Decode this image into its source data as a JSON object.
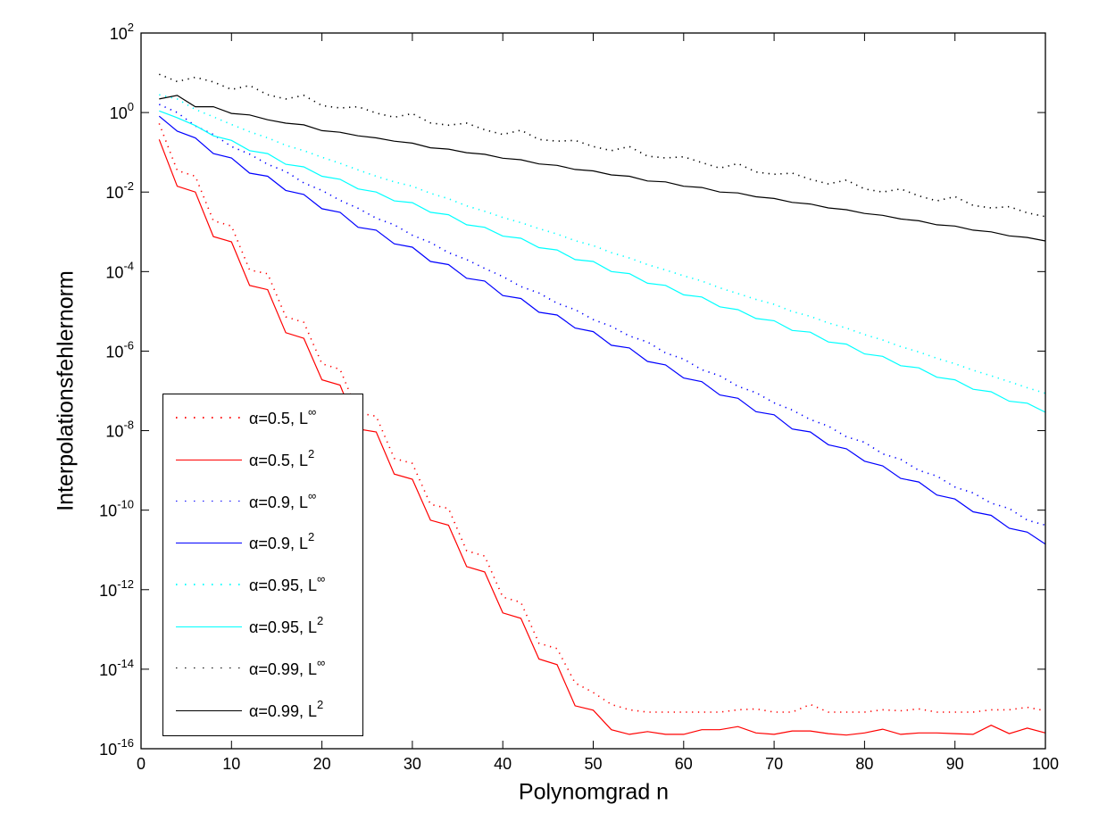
{
  "chart_data": {
    "type": "line",
    "title": "",
    "xlabel": "Polynomgrad n",
    "ylabel": "Interpolationsfehlernorm",
    "xlim": [
      0,
      100
    ],
    "ylim": [
      1e-16,
      100.0
    ],
    "yscale": "log",
    "grid": false,
    "legend_position": "bottom-left",
    "x_ticks": [
      "0",
      "10",
      "20",
      "30",
      "40",
      "50",
      "60",
      "70",
      "80",
      "90",
      "100"
    ],
    "y_ticks": [
      {
        "base": "10",
        "exp": "2"
      },
      {
        "base": "10",
        "exp": "0"
      },
      {
        "base": "10",
        "exp": "-2"
      },
      {
        "base": "10",
        "exp": "-4"
      },
      {
        "base": "10",
        "exp": "-6"
      },
      {
        "base": "10",
        "exp": "-8"
      },
      {
        "base": "10",
        "exp": "-10"
      },
      {
        "base": "10",
        "exp": "-12"
      },
      {
        "base": "10",
        "exp": "-14"
      },
      {
        "base": "10",
        "exp": "-16"
      }
    ],
    "x": [
      2,
      4,
      6,
      8,
      10,
      12,
      14,
      16,
      18,
      20,
      22,
      24,
      26,
      28,
      30,
      32,
      34,
      36,
      38,
      40,
      42,
      44,
      46,
      48,
      50,
      52,
      54,
      56,
      58,
      60,
      62,
      64,
      66,
      68,
      70,
      72,
      74,
      76,
      78,
      80,
      82,
      84,
      86,
      88,
      90,
      92,
      94,
      96,
      98,
      100
    ],
    "series": [
      {
        "name": "α=0.5, L",
        "sup": "∞",
        "color": "#ff0000",
        "style": "dotted",
        "values": [
          0.53,
          0.035,
          0.025,
          0.0019,
          0.0014,
          0.00011,
          8.8e-05,
          7.3e-06,
          5.3e-06,
          4.8e-07,
          3.5e-07,
          2.8e-08,
          2.3e-08,
          2e-09,
          1.5e-09,
          1.4e-10,
          1.1e-10,
          9.5e-12,
          7e-12,
          6.5e-13,
          4.8e-13,
          4.5e-14,
          3.3e-14,
          4.5e-15,
          2.6e-15,
          1.3e-15,
          9.5e-16,
          8.3e-16,
          8.3e-16,
          8.3e-16,
          8.3e-16,
          8.3e-16,
          9.5e-16,
          1e-15,
          8.3e-16,
          8.3e-16,
          1.3e-15,
          8.3e-16,
          8.3e-16,
          8.3e-16,
          9.5e-16,
          9e-16,
          1e-15,
          8.3e-16,
          8.3e-16,
          8.3e-16,
          9.5e-16,
          9.5e-16,
          1.1e-15,
          9e-16
        ]
      },
      {
        "name": "α=0.5, L",
        "sup": "2",
        "color": "#ff0000",
        "style": "solid",
        "values": [
          0.21,
          0.014,
          0.01,
          0.00076,
          0.00056,
          4.5e-05,
          3.5e-05,
          2.9e-06,
          2.1e-06,
          1.9e-07,
          1.4e-07,
          1.1e-08,
          9.3e-09,
          8.1e-10,
          6e-10,
          5.6e-11,
          4.2e-11,
          3.8e-12,
          2.8e-12,
          2.6e-13,
          1.9e-13,
          1.8e-14,
          1.3e-14,
          1.2e-15,
          9.3e-16,
          3e-16,
          2.3e-16,
          2.7e-16,
          2.3e-16,
          2.3e-16,
          3e-16,
          3e-16,
          3.6e-16,
          2.5e-16,
          2.3e-16,
          2.8e-16,
          2.8e-16,
          2.4e-16,
          2.2e-16,
          2.5e-16,
          3.1e-16,
          2.3e-16,
          2.5e-16,
          2.5e-16,
          2.4e-16,
          2.3e-16,
          3.9e-16,
          2.4e-16,
          3.3e-16,
          2.5e-16
        ]
      },
      {
        "name": "α=0.9, L",
        "sup": "∞",
        "color": "#0000ff",
        "style": "dotted",
        "values": [
          1.6,
          1.0,
          0.46,
          0.28,
          0.14,
          0.09,
          0.05,
          0.033,
          0.017,
          0.011,
          0.0062,
          0.0039,
          0.0022,
          0.0015,
          0.00082,
          0.00054,
          0.0003,
          0.0002,
          0.00012,
          7.5e-05,
          4.2e-05,
          2.9e-05,
          1.6e-05,
          1.1e-05,
          6.2e-06,
          4.2e-06,
          2.4e-06,
          1.7e-06,
          9e-07,
          6.3e-07,
          3.4e-07,
          2.4e-07,
          1.3e-07,
          9e-08,
          5e-08,
          3.3e-08,
          1.9e-08,
          1.3e-08,
          7e-09,
          5.1e-09,
          2.6e-09,
          1.9e-09,
          1e-09,
          7.2e-10,
          3.8e-10,
          2.7e-10,
          1.5e-10,
          1.1e-10,
          5.6e-11,
          4.2e-11
        ]
      },
      {
        "name": "α=0.9, L",
        "sup": "2",
        "color": "#0000ff",
        "style": "solid",
        "values": [
          0.81,
          0.34,
          0.23,
          0.093,
          0.072,
          0.03,
          0.025,
          0.011,
          0.0087,
          0.0038,
          0.0031,
          0.0013,
          0.0011,
          0.0005,
          0.00041,
          0.00018,
          0.00015,
          6.8e-05,
          5.8e-05,
          2.5e-05,
          2.1e-05,
          9.5e-06,
          8.1e-06,
          3.8e-06,
          3.1e-06,
          1.4e-06,
          1.2e-06,
          5.5e-07,
          4.5e-07,
          2.1e-07,
          1.7e-07,
          7.9e-08,
          6.5e-08,
          3e-08,
          2.5e-08,
          1.1e-08,
          9.3e-09,
          4.4e-09,
          3.5e-09,
          1.7e-09,
          1.3e-09,
          6.3e-10,
          5.1e-10,
          2.4e-10,
          1.9e-10,
          9.1e-11,
          7.4e-11,
          3.5e-11,
          2.8e-11,
          1.4e-11
        ]
      },
      {
        "name": "α=0.95, L",
        "sup": "∞",
        "color": "#00ffff",
        "style": "dotted",
        "values": [
          2.8,
          2.2,
          1.2,
          0.78,
          0.5,
          0.33,
          0.23,
          0.15,
          0.11,
          0.075,
          0.053,
          0.036,
          0.025,
          0.018,
          0.014,
          0.0093,
          0.0068,
          0.0045,
          0.0033,
          0.0023,
          0.0017,
          0.0012,
          0.00088,
          0.0006,
          0.00045,
          0.0003,
          0.00022,
          0.00015,
          0.00011,
          7.8e-05,
          5.8e-05,
          3.9e-05,
          2.8e-05,
          2e-05,
          1.5e-05,
          9.9e-06,
          7.5e-06,
          5.1e-06,
          3.8e-06,
          2.6e-06,
          1.9e-06,
          1.3e-06,
          9.5e-07,
          6.6e-07,
          4.8e-07,
          3.3e-07,
          2.4e-07,
          1.7e-07,
          1.2e-07,
          8.7e-08
        ]
      },
      {
        "name": "α=0.95, L",
        "sup": "2",
        "color": "#00ffff",
        "style": "solid",
        "values": [
          1.1,
          0.74,
          0.47,
          0.26,
          0.2,
          0.11,
          0.093,
          0.05,
          0.043,
          0.025,
          0.021,
          0.012,
          0.01,
          0.006,
          0.0054,
          0.0031,
          0.0027,
          0.0015,
          0.0013,
          0.00078,
          0.00069,
          0.0004,
          0.00035,
          0.0002,
          0.00018,
          0.0001,
          8.9e-05,
          5.1e-05,
          4.5e-05,
          2.6e-05,
          2.3e-05,
          1.3e-05,
          1.1e-05,
          6.6e-06,
          5.8e-06,
          3.3e-06,
          3e-06,
          1.7e-06,
          1.5e-06,
          8.5e-07,
          7.4e-07,
          4.3e-07,
          3.8e-07,
          2.2e-07,
          1.9e-07,
          1.1e-07,
          9.5e-08,
          5.5e-08,
          4.9e-08,
          2.9e-08
        ]
      },
      {
        "name": "α=0.99, L",
        "sup": "∞",
        "color": "#000000",
        "style": "dotted",
        "values": [
          9.2,
          6.0,
          7.7,
          5.9,
          3.8,
          4.8,
          2.8,
          2.2,
          2.7,
          1.5,
          1.3,
          1.4,
          0.97,
          0.76,
          0.94,
          0.55,
          0.48,
          0.54,
          0.37,
          0.28,
          0.36,
          0.21,
          0.19,
          0.2,
          0.14,
          0.11,
          0.14,
          0.08,
          0.072,
          0.077,
          0.055,
          0.04,
          0.052,
          0.032,
          0.028,
          0.03,
          0.021,
          0.016,
          0.02,
          0.012,
          0.01,
          0.012,
          0.008,
          0.006,
          0.0077,
          0.0046,
          0.004,
          0.0043,
          0.003,
          0.0024
        ]
      },
      {
        "name": "α=0.99, L",
        "sup": "2",
        "color": "#000000",
        "style": "solid",
        "values": [
          2.2,
          2.7,
          1.4,
          1.4,
          0.95,
          0.87,
          0.66,
          0.54,
          0.49,
          0.35,
          0.32,
          0.26,
          0.23,
          0.19,
          0.17,
          0.13,
          0.12,
          0.098,
          0.089,
          0.071,
          0.065,
          0.051,
          0.047,
          0.037,
          0.034,
          0.027,
          0.025,
          0.019,
          0.018,
          0.014,
          0.013,
          0.01,
          0.0095,
          0.0076,
          0.0069,
          0.0055,
          0.005,
          0.004,
          0.0036,
          0.0029,
          0.0026,
          0.0021,
          0.0019,
          0.0015,
          0.0014,
          0.0011,
          0.001,
          0.00079,
          0.00072,
          0.00059
        ]
      }
    ]
  }
}
